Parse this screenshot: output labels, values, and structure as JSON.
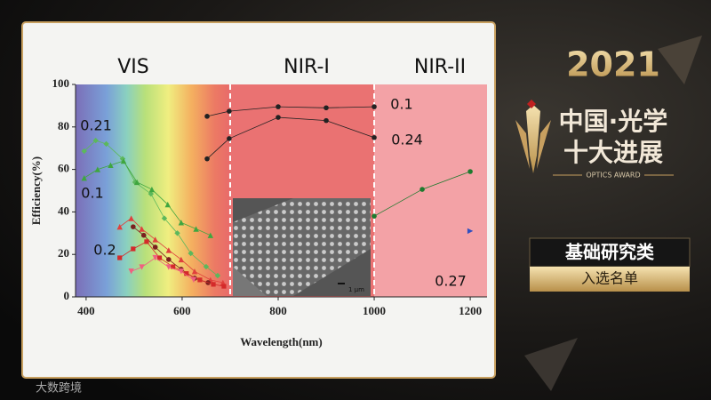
{
  "chart_data": {
    "type": "scatter-line",
    "xlabel": "Wavelength(nm)",
    "ylabel": "Efficiency(%)",
    "xlim": [
      378,
      1235
    ],
    "ylim": [
      0,
      100
    ],
    "xticks": [
      400,
      600,
      800,
      1000,
      1200
    ],
    "yticks": [
      0,
      20,
      40,
      60,
      80,
      100
    ],
    "regions": [
      "VIS",
      "NIR-I",
      "NIR-II"
    ],
    "dividers": [
      700,
      1000
    ],
    "annotations": [
      "0.21",
      "0.1",
      "0.2",
      "0.1",
      "0.24",
      "0.27"
    ],
    "series": [
      {
        "color": "#5cb85c",
        "marker": "diamond",
        "x": [
          396,
          420,
          442,
          476,
          502,
          535,
          563,
          590,
          618,
          650,
          674
        ],
        "values": [
          68.6,
          73.6,
          72,
          65,
          54,
          48.5,
          37,
          30,
          20.5,
          14.2,
          10
        ]
      },
      {
        "color": "#3fa63f",
        "marker": "triangle-up",
        "x": [
          396,
          424,
          451,
          478,
          506,
          537,
          570,
          598,
          629,
          659
        ],
        "values": [
          56,
          60,
          62,
          64,
          54,
          50.6,
          43.5,
          35,
          32,
          29
        ]
      },
      {
        "color": "#e0403c",
        "marker": "triangle-up",
        "x": [
          470,
          494,
          516,
          544,
          572,
          598,
          626,
          659,
          685
        ],
        "values": [
          33,
          37,
          32,
          27,
          22,
          17.6,
          12,
          8,
          6.7
        ]
      },
      {
        "color": "#7a1f1f",
        "marker": "circle",
        "x": [
          498,
          520,
          544,
          572,
          598,
          626,
          654
        ],
        "values": [
          33,
          29,
          23.4,
          17.6,
          13,
          8.8,
          6.7
        ]
      },
      {
        "color": "#d42a2a",
        "marker": "square",
        "x": [
          470,
          498,
          526,
          553,
          581,
          609,
          637,
          665,
          687
        ],
        "values": [
          18.4,
          22.6,
          26,
          18.4,
          14.2,
          11,
          8,
          5.9,
          5
        ]
      },
      {
        "color": "#f06080",
        "marker": "triangle-down",
        "x": [
          494,
          516,
          544,
          572,
          598,
          624
        ],
        "values": [
          12,
          14,
          18.4,
          14,
          12,
          8
        ]
      },
      {
        "color": "#222222",
        "marker": "circle",
        "x": [
          652,
          698,
          800,
          900,
          1000
        ],
        "values": [
          85,
          87.4,
          89.5,
          89,
          89.5
        ]
      },
      {
        "color": "#222222",
        "marker": "circle",
        "x": [
          652,
          698,
          800,
          900,
          1000
        ],
        "values": [
          65,
          74.5,
          84.5,
          83,
          75
        ]
      },
      {
        "color": "#1e7a2e",
        "marker": "circle",
        "x": [
          1000,
          1100,
          1200
        ],
        "values": [
          38,
          50.6,
          59
        ]
      },
      {
        "color": "#3050c0",
        "marker": "triangle-right",
        "x": [
          1200
        ],
        "values": [
          31
        ]
      }
    ],
    "inset_scale": "1 μm"
  },
  "award": {
    "year": "2021",
    "line1": "中国·光学",
    "line2": "十大进展",
    "english": "OPTICS AWARD",
    "category": "基础研究类",
    "list": "入选名单"
  },
  "watermark": "大数跨境"
}
